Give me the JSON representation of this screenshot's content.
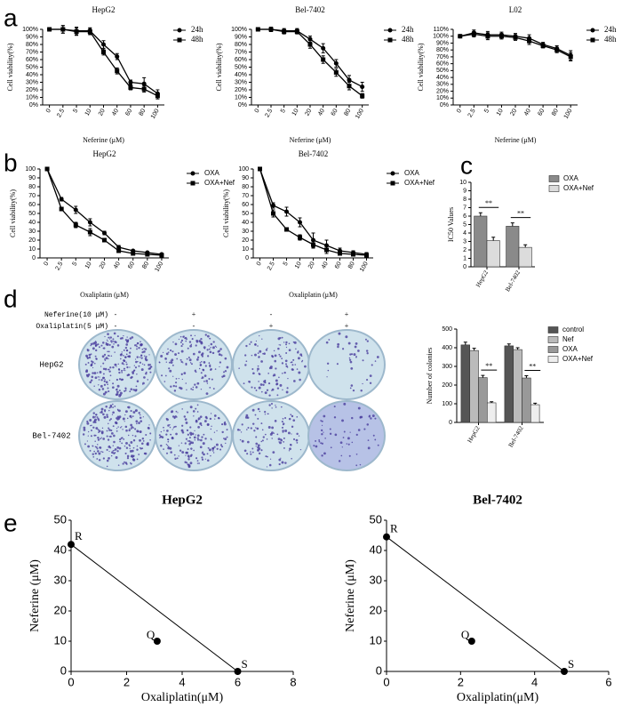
{
  "panels": [
    "a",
    "b",
    "c",
    "d",
    "e"
  ],
  "colony_assay": {
    "treatments": [
      {
        "label": "Neferine(10 μM)",
        "signs": [
          "-",
          "+",
          "-",
          "+"
        ]
      },
      {
        "label": "Oxaliplatin(5 μM)",
        "signs": [
          "-",
          "-",
          "+",
          "+"
        ]
      }
    ],
    "cell_lines": [
      "HepG2",
      "Bel-7402"
    ]
  },
  "chart_data": [
    {
      "type": "line",
      "title": "HepG2",
      "xlabel": "Neferine (μM)",
      "ylabel": "Cell viability(%)",
      "categories": [
        "0",
        "2.5",
        "5",
        "10",
        "20",
        "40",
        "60",
        "80",
        "100"
      ],
      "series": [
        {
          "name": "24h",
          "color": "#000",
          "marker": "circle",
          "values": [
            100,
            100,
            98,
            98,
            80,
            64,
            30,
            28,
            15
          ],
          "errors": [
            2,
            5,
            5,
            4,
            5,
            4,
            3,
            8,
            5
          ]
        },
        {
          "name": "48h",
          "color": "#000",
          "marker": "square",
          "values": [
            100,
            100,
            97,
            97,
            70,
            45,
            23,
            21,
            12
          ],
          "errors": [
            2,
            5,
            5,
            4,
            4,
            4,
            3,
            4,
            4
          ]
        }
      ],
      "ylim": [
        0,
        100
      ],
      "yticks": [
        {
          "value": 0,
          "label": "0%"
        },
        {
          "value": 10,
          "label": "10%"
        },
        {
          "value": 20,
          "label": "20%"
        },
        {
          "value": 30,
          "label": "30%"
        },
        {
          "value": 40,
          "label": "40%"
        },
        {
          "value": 50,
          "label": "50%"
        },
        {
          "value": 60,
          "label": "60%"
        },
        {
          "value": 70,
          "label": "70%"
        },
        {
          "value": 80,
          "label": "80%"
        },
        {
          "value": 90,
          "label": "90%"
        },
        {
          "value": 100,
          "label": "100%"
        }
      ]
    },
    {
      "type": "line",
      "title": "Bel-7402",
      "xlabel": "Neferine (μM)",
      "ylabel": "Cell viability(%)",
      "categories": [
        "0",
        "2.5",
        "5",
        "10",
        "20",
        "40",
        "60",
        "80",
        "100"
      ],
      "series": [
        {
          "name": "24h",
          "color": "#000",
          "marker": "circle",
          "values": [
            100,
            100,
            98,
            98,
            87,
            75,
            55,
            33,
            24
          ],
          "errors": [
            2,
            3,
            3,
            3,
            4,
            6,
            5,
            6,
            6
          ]
        },
        {
          "name": "48h",
          "color": "#000",
          "marker": "square",
          "values": [
            100,
            100,
            97,
            97,
            80,
            60,
            43,
            25,
            12
          ],
          "errors": [
            2,
            3,
            3,
            3,
            5,
            5,
            5,
            5,
            3
          ]
        }
      ],
      "ylim": [
        0,
        100
      ],
      "yticks": [
        {
          "value": 0,
          "label": "0%"
        },
        {
          "value": 10,
          "label": "10%"
        },
        {
          "value": 20,
          "label": "20%"
        },
        {
          "value": 30,
          "label": "30%"
        },
        {
          "value": 40,
          "label": "40%"
        },
        {
          "value": 50,
          "label": "50%"
        },
        {
          "value": 60,
          "label": "60%"
        },
        {
          "value": 70,
          "label": "70%"
        },
        {
          "value": 80,
          "label": "80%"
        },
        {
          "value": 90,
          "label": "90%"
        },
        {
          "value": 100,
          "label": "100%"
        }
      ]
    },
    {
      "type": "line",
      "title": "L02",
      "xlabel": "Neferine (μM)",
      "ylabel": "Cell viability(%)",
      "categories": [
        "0",
        "2.5",
        "5",
        "10",
        "20",
        "40",
        "60",
        "80",
        "100"
      ],
      "series": [
        {
          "name": "24h",
          "color": "#000",
          "marker": "circle",
          "values": [
            100,
            105,
            102,
            102,
            100,
            97,
            88,
            82,
            72
          ],
          "errors": [
            2,
            4,
            5,
            4,
            4,
            5,
            3,
            4,
            7
          ]
        },
        {
          "name": "48h",
          "color": "#000",
          "marker": "square",
          "values": [
            100,
            103,
            100,
            100,
            98,
            93,
            86,
            80,
            70
          ],
          "errors": [
            2,
            4,
            5,
            4,
            4,
            5,
            3,
            4,
            6
          ]
        }
      ],
      "ylim": [
        0,
        110
      ],
      "yticks": [
        {
          "value": 0,
          "label": "0%"
        },
        {
          "value": 10,
          "label": "10%"
        },
        {
          "value": 20,
          "label": "20%"
        },
        {
          "value": 30,
          "label": "30%"
        },
        {
          "value": 40,
          "label": "40%"
        },
        {
          "value": 50,
          "label": "50%"
        },
        {
          "value": 60,
          "label": "60%"
        },
        {
          "value": 70,
          "label": "70%"
        },
        {
          "value": 80,
          "label": "80%"
        },
        {
          "value": 90,
          "label": "90%"
        },
        {
          "value": 100,
          "label": "100%"
        },
        {
          "value": 110,
          "label": "110%"
        }
      ]
    },
    {
      "type": "line",
      "title": "HepG2",
      "xlabel": "Oxaliplatin (μM)",
      "ylabel": "Cell viability(%)",
      "categories": [
        "0",
        "2.5",
        "5",
        "10",
        "20",
        "40",
        "60",
        "80",
        "100"
      ],
      "series": [
        {
          "name": "OXA",
          "color": "#000",
          "marker": "circle",
          "values": [
            100,
            66,
            54,
            40,
            28,
            12,
            8,
            6,
            4
          ],
          "errors": [
            1,
            2,
            4,
            4,
            2,
            2,
            1,
            1,
            1
          ]
        },
        {
          "name": "OXA+Nef",
          "color": "#000",
          "marker": "square",
          "values": [
            100,
            55,
            37,
            29,
            20,
            8,
            5,
            4,
            3
          ],
          "errors": [
            1,
            2,
            3,
            4,
            2,
            2,
            1,
            1,
            1
          ]
        }
      ],
      "ylim": [
        0,
        100
      ],
      "yticks": [
        0,
        10,
        20,
        30,
        40,
        50,
        60,
        70,
        80,
        90,
        100
      ]
    },
    {
      "type": "line",
      "title": "Bel-7402",
      "xlabel": "Oxaliplatin (μM)",
      "ylabel": "Cell viability(%)",
      "categories": [
        "0",
        "2.5",
        "5",
        "10",
        "20",
        "40",
        "60",
        "80",
        "100"
      ],
      "series": [
        {
          "name": "OXA",
          "color": "#000",
          "marker": "circle",
          "values": [
            100,
            59,
            52,
            40,
            20,
            14,
            8,
            6,
            4
          ],
          "errors": [
            1,
            3,
            5,
            5,
            8,
            6,
            3,
            2,
            2
          ]
        },
        {
          "name": "OXA+Nef",
          "color": "#000",
          "marker": "square",
          "values": [
            100,
            50,
            32,
            23,
            15,
            9,
            5,
            4,
            3
          ],
          "errors": [
            1,
            4,
            2,
            3,
            4,
            4,
            2,
            2,
            2
          ]
        }
      ],
      "ylim": [
        0,
        100
      ],
      "yticks": [
        0,
        10,
        20,
        30,
        40,
        50,
        60,
        70,
        80,
        90,
        100
      ]
    },
    {
      "type": "bar",
      "ylabel": "IC50 Values",
      "categories": [
        "HepG2",
        "Bel-7402"
      ],
      "series": [
        {
          "name": "OXA",
          "color": "#8a8a8a",
          "values": [
            6.0,
            4.8
          ],
          "errors": [
            0.4,
            0.4
          ]
        },
        {
          "name": "OXA+Nef",
          "color": "#dcdcdc",
          "values": [
            3.1,
            2.3
          ],
          "errors": [
            0.4,
            0.3
          ]
        }
      ],
      "significance": [
        "**",
        "**"
      ],
      "ylim": [
        0,
        10
      ],
      "yticks": [
        0,
        1,
        2,
        3,
        4,
        5,
        6,
        7,
        8,
        9,
        10
      ]
    },
    {
      "type": "bar",
      "ylabel": "Number of colonies",
      "categories": [
        "HepG2",
        "Bel-7402"
      ],
      "series": [
        {
          "name": "control",
          "color": "#555",
          "values": [
            415,
            410
          ],
          "errors": [
            15,
            10
          ]
        },
        {
          "name": "Nef",
          "color": "#bbb",
          "values": [
            385,
            390
          ],
          "errors": [
            12,
            10
          ]
        },
        {
          "name": "OXA",
          "color": "#999",
          "values": [
            240,
            238
          ],
          "errors": [
            12,
            12
          ]
        },
        {
          "name": "OXA+Nef",
          "color": "#eee",
          "values": [
            105,
            95
          ],
          "errors": [
            6,
            8
          ]
        }
      ],
      "significance": [
        "**",
        "**"
      ],
      "ylim": [
        0,
        500
      ],
      "yticks": [
        0,
        100,
        200,
        300,
        400,
        500
      ]
    },
    {
      "type": "scatter",
      "title": "HepG2",
      "xlabel": "Oxaliplatin(μM)",
      "ylabel": "Neferine (μM)",
      "x": [
        0,
        3.1,
        6
      ],
      "values": [
        42,
        10,
        0
      ],
      "point_labels": [
        "R",
        "Q",
        "S"
      ],
      "color": "#000",
      "xlim": [
        0,
        8
      ],
      "xticks": [
        0,
        2,
        4,
        6,
        8
      ],
      "ylim": [
        0,
        50
      ],
      "yticks": [
        0,
        10,
        20,
        30,
        40,
        50
      ]
    },
    {
      "type": "scatter",
      "title": "Bel-7402",
      "xlabel": "Oxaliplatin(μM)",
      "ylabel": "Neferine (μM)",
      "x": [
        0,
        2.3,
        4.8
      ],
      "values": [
        44.5,
        10,
        0
      ],
      "point_labels": [
        "R",
        "Q",
        "S"
      ],
      "color": "#000",
      "xlim": [
        0,
        6
      ],
      "xticks": [
        0,
        2,
        4,
        6
      ],
      "ylim": [
        0,
        50
      ],
      "yticks": [
        0,
        10,
        20,
        30,
        40,
        50
      ]
    }
  ]
}
